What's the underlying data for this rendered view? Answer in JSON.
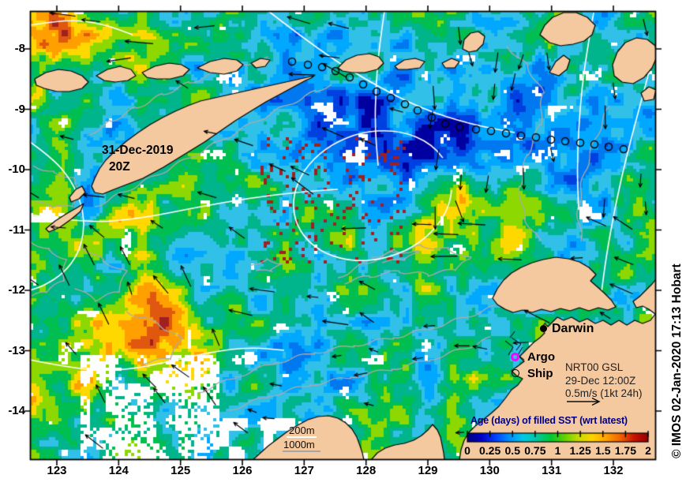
{
  "figure": {
    "overlay_date": "31-Dec-2019",
    "overlay_time": "20Z",
    "credit": "© IMOS 02-Jan-2020 17:13 Hobart"
  },
  "axes": {
    "lat_labels": [
      "-8",
      "-9",
      "-10",
      "-11",
      "-12",
      "-13",
      "-14"
    ],
    "lon_labels": [
      "123",
      "124",
      "125",
      "126",
      "127",
      "128",
      "129",
      "130",
      "131",
      "132"
    ]
  },
  "places": {
    "darwin": "Darwin"
  },
  "legend": {
    "argo_label": "Argo",
    "ship_label": "Ship",
    "argo_color": "#FF00FF",
    "info_line1": "NRT00 GSL",
    "info_line2": "29-Dec 12:00Z",
    "info_line3": "0.5m/s (1kt 24h)",
    "contour_200": "200m",
    "contour_1000": "1000m"
  },
  "colorbar": {
    "title": "Age (days) of filled SST (wrt latest)",
    "title_color": "#00008B",
    "tick_labels": [
      "0",
      "0.25",
      "0.5",
      "0.75",
      "1",
      "1.25",
      "1.5",
      "1.75",
      "2"
    ],
    "stops": [
      "#000080",
      "#0000C8",
      "#0040FF",
      "#0090FF",
      "#00C8E8",
      "#00C8A0",
      "#00C832",
      "#64D200",
      "#C8DC00",
      "#FFD200",
      "#FFA000",
      "#F06400",
      "#C81400",
      "#900000"
    ]
  },
  "map": {
    "land_color": "#F5C9A0",
    "coast_color": "#000000",
    "bathy_contour_color": "#ABABAB",
    "ssh_contour_color": "#FFFFFF",
    "sea_palette": [
      "#0000A0",
      "#0040E0",
      "#0078F0",
      "#00A8FF",
      "#30C0E8",
      "#00B48C",
      "#00BE50",
      "#8CD800",
      "#FFD800",
      "#FFA000",
      "#E05810",
      "#A02020",
      "#FFFFFF"
    ]
  },
  "chart_data": {
    "type": "heatmap",
    "title": "Age (days) of filled SST (wrt latest)",
    "colorbar_range": [
      0,
      2
    ],
    "colorbar_ticks": [
      0,
      0.25,
      0.5,
      0.75,
      1,
      1.25,
      1.5,
      1.75,
      2
    ],
    "lon_ticks": [
      123,
      124,
      125,
      126,
      127,
      128,
      129,
      130,
      131,
      132
    ],
    "lat_ticks": [
      -8,
      -9,
      -10,
      -11,
      -12,
      -13,
      -14
    ]
  }
}
